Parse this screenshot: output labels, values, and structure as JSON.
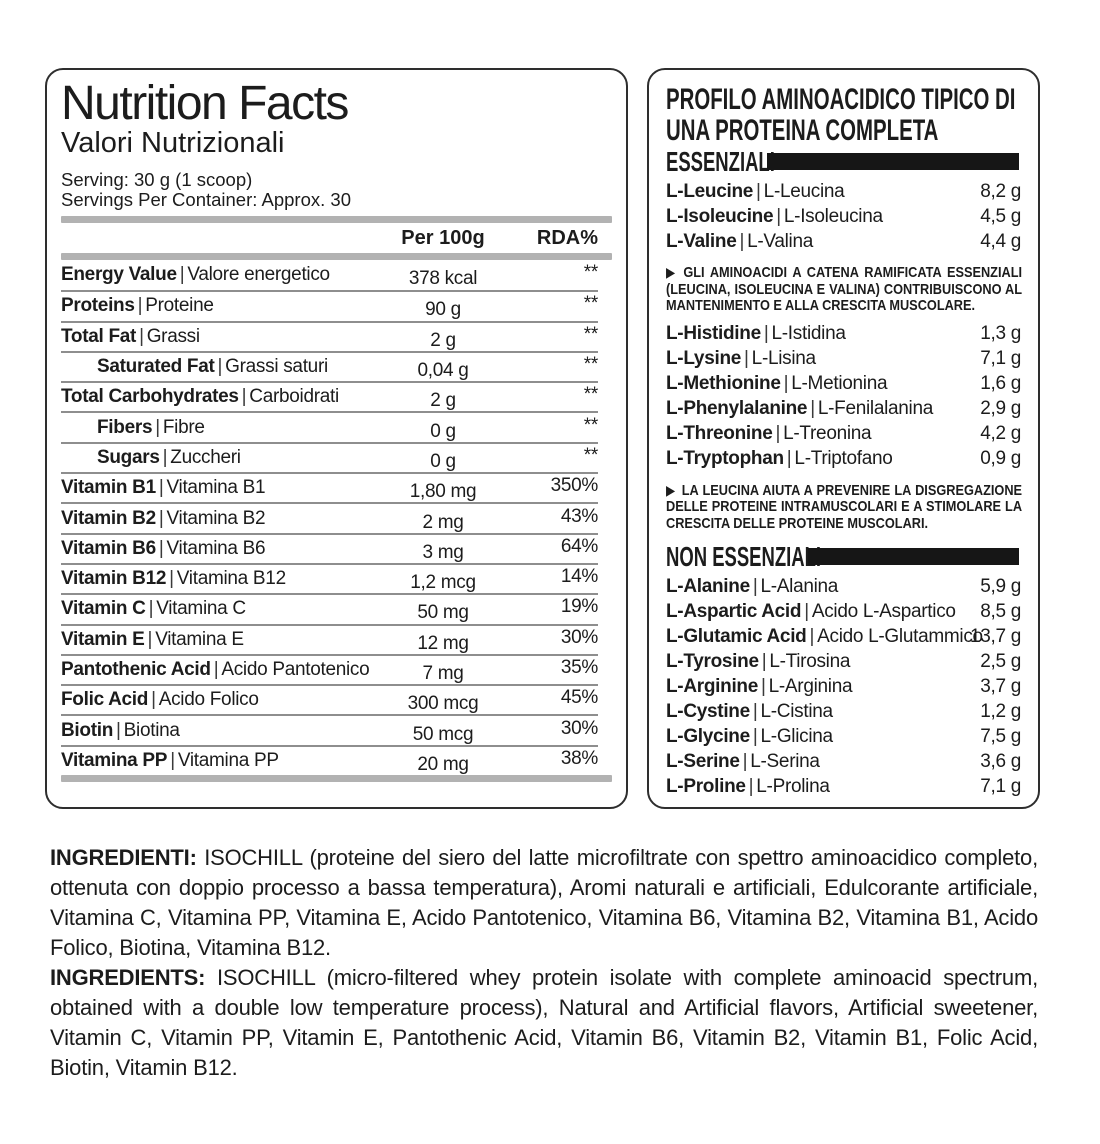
{
  "colors": {
    "ink": "#1c1c1c",
    "bar_gray": "#b2b2b2",
    "sep_gray": "#8e8e8e",
    "accent_black": "#161616"
  },
  "misc": {
    "pipe": "|",
    "arrow": "▶"
  },
  "left_panel": {
    "title": "Nutrition Facts",
    "subtitle": "Valori Nutrizionali",
    "serving_line1": "Serving: 30 g (1 scoop)",
    "serving_line2": "Servings Per Container: Approx. 30",
    "col_amount_header": "Per 100g",
    "col_rda_header": "RDA%",
    "rows": [
      {
        "en": "Energy Value",
        "it": "Valore energetico",
        "amount": "378 kcal",
        "rda": "**",
        "indent": false
      },
      {
        "en": "Proteins",
        "it": "Proteine",
        "amount": "90 g",
        "rda": "**",
        "indent": false
      },
      {
        "en": "Total Fat",
        "it": "Grassi",
        "amount": "2 g",
        "rda": "**",
        "indent": false
      },
      {
        "en": "Saturated Fat",
        "it": "Grassi saturi",
        "amount": "0,04 g",
        "rda": "**",
        "indent": true
      },
      {
        "en": "Total Carbohydrates",
        "it": "Carboidrati",
        "amount": "2 g",
        "rda": "**",
        "indent": false
      },
      {
        "en": "Fibers",
        "it": "Fibre",
        "amount": "0 g",
        "rda": "**",
        "indent": true
      },
      {
        "en": "Sugars",
        "it": "Zuccheri",
        "amount": "0 g",
        "rda": "**",
        "indent": true
      },
      {
        "en": "Vitamin B1",
        "it": "Vitamina B1",
        "amount": "1,80 mg",
        "rda": "350%",
        "indent": false
      },
      {
        "en": "Vitamin B2",
        "it": "Vitamina B2",
        "amount": "2 mg",
        "rda": "43%",
        "indent": false
      },
      {
        "en": "Vitamin B6",
        "it": "Vitamina B6",
        "amount": "3 mg",
        "rda": "64%",
        "indent": false
      },
      {
        "en": "Vitamin B12",
        "it": "Vitamina B12",
        "amount": "1,2 mcg",
        "rda": "14%",
        "indent": false
      },
      {
        "en": "Vitamin C",
        "it": "Vitamina C",
        "amount": "50 mg",
        "rda": "19%",
        "indent": false
      },
      {
        "en": "Vitamin E",
        "it": "Vitamina E",
        "amount": "12 mg",
        "rda": "30%",
        "indent": false
      },
      {
        "en": "Pantothenic Acid",
        "it": "Acido Pantotenico",
        "amount": "7 mg",
        "rda": "35%",
        "indent": false
      },
      {
        "en": "Folic Acid",
        "it": "Acido Folico",
        "amount": "300 mcg",
        "rda": "45%",
        "indent": false
      },
      {
        "en": "Biotin",
        "it": "Biotina",
        "amount": "50 mcg",
        "rda": "30%",
        "indent": false
      },
      {
        "en": "Vitamina PP",
        "it": "Vitamina PP",
        "amount": "20 mg",
        "rda": "38%",
        "indent": false
      }
    ]
  },
  "right_panel": {
    "title": "PROFILO AMINOACIDICO TIPICO DI UNA PROTEINA COMPLETA",
    "essenziali_label": "ESSENZIALI",
    "non_essenziali_label": "NON ESSENZIALI",
    "bcaa_rows": [
      {
        "en": "L-Leucine",
        "it": "L-Leucina",
        "value": "8,2 g"
      },
      {
        "en": "L-Isoleucine",
        "it": "L-Isoleucina",
        "value": "4,5 g"
      },
      {
        "en": "L-Valine",
        "it": "L-Valina",
        "value": "4,4 g"
      }
    ],
    "note1": "GLI AMINOACIDI A CATENA RAMIFICATA ESSENZIALI (LEUCINA, ISOLEUCINA E VALINA) CONTRIBUISCONO AL MANTENIMENTO E ALLA CRESCITA MUSCOLARE.",
    "essential_rows": [
      {
        "en": "L-Histidine",
        "it": "L-Istidina",
        "value": "1,3 g"
      },
      {
        "en": "L-Lysine",
        "it": "L-Lisina",
        "value": "7,1 g"
      },
      {
        "en": "L-Methionine",
        "it": "L-Metionina",
        "value": "1,6 g"
      },
      {
        "en": "L-Phenylalanine",
        "it": "L-Fenilalanina",
        "value": "2,9 g"
      },
      {
        "en": "L-Threonine",
        "it": "L-Treonina",
        "value": "4,2 g"
      },
      {
        "en": "L-Tryptophan",
        "it": "L-Triptofano",
        "value": "0,9 g"
      }
    ],
    "note2": "LA LEUCINA AIUTA A PREVENIRE LA DISGREGAZIONE DELLE PROTEINE INTRAMUSCOLARI E A STIMOLARE LA CRESCITA DELLE PROTEINE MUSCOLARI.",
    "non_essential_rows": [
      {
        "en": "L-Alanine",
        "it": "L-Alanina",
        "value": "5,9 g"
      },
      {
        "en": "L-Aspartic Acid",
        "it": "Acido L-Aspartico",
        "value": "8,5 g"
      },
      {
        "en": "L-Glutamic Acid",
        "it": "Acido L-Glutammico",
        "value": "13,7 g"
      },
      {
        "en": "L-Tyrosine",
        "it": "L-Tirosina",
        "value": "2,5 g"
      },
      {
        "en": "L-Arginine",
        "it": "L-Arginina",
        "value": "3,7 g"
      },
      {
        "en": "L-Cystine",
        "it": "L-Cistina",
        "value": "1,2 g"
      },
      {
        "en": "L-Glycine",
        "it": "L-Glicina",
        "value": "7,5 g"
      },
      {
        "en": "L-Serine",
        "it": "L-Serina",
        "value": "3,6 g"
      },
      {
        "en": "L-Proline",
        "it": "L-Prolina",
        "value": "7,1 g"
      }
    ]
  },
  "ingredients": {
    "it_label": "INGREDIENTI:",
    "it_text": " ISOCHILL (proteine del siero del latte microfiltrate con spettro aminoacidico completo,  ottenuta con doppio processo a bassa temperatura), Aromi naturali e artificiali, Edulcorante artificiale, Vitamina C, Vitamina PP, Vitamina E, Acido Pantotenico, Vitamina B6, Vitamina B2, Vitamina B1, Acido Folico, Biotina, Vitamina B12.",
    "en_label": "INGREDIENTS:",
    "en_text": " ISOCHILL (micro-filtered whey protein isolate with complete aminoacid spectrum,  obtained with a double low temperature process), Natural and Artificial flavors, Artificial sweetener, Vitamin C, Vitamin PP, Vitamin E, Pantothenic Acid, Vitamin B6, Vitamin B2, Vitamin B1, Folic Acid, Biotin, Vitamin B12."
  }
}
